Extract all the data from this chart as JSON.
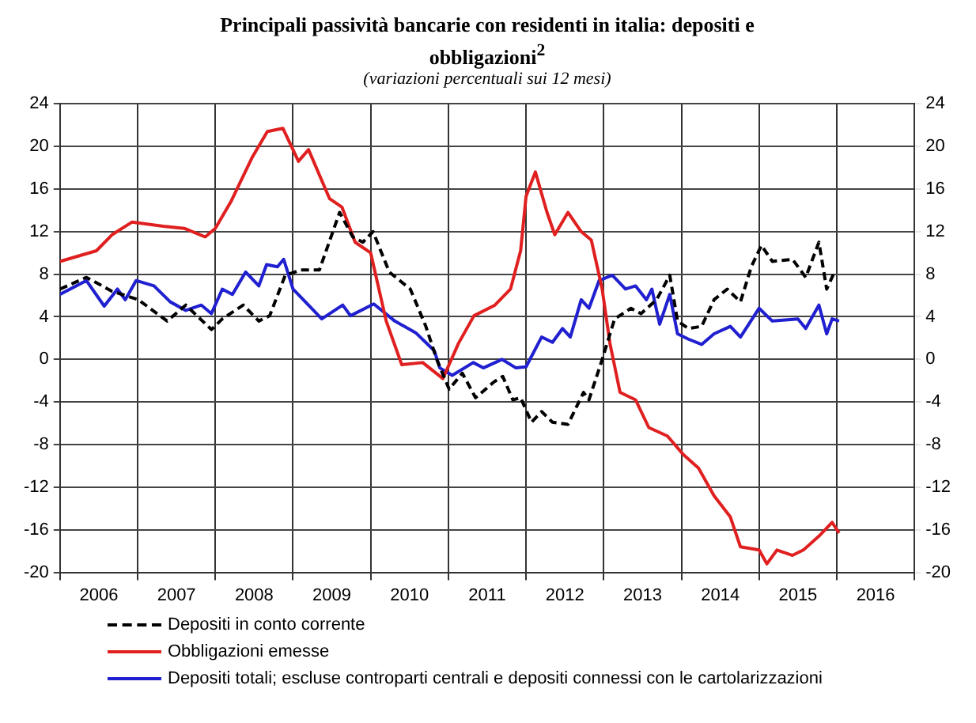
{
  "chart_data": {
    "type": "line",
    "title": "Principali passività bancarie con residenti in italia: depositi e obbligazioni$^{2}$",
    "subtitle": "(variazioni percentuali sui 12 mesi)",
    "xlim": [
      2006,
      2017
    ],
    "xticks": [
      {
        "value": 2006,
        "label": null
      },
      {
        "value": 2006.5,
        "label": "2006"
      },
      {
        "value": 2007,
        "label": null
      },
      {
        "value": 2007.5,
        "label": "2007"
      },
      {
        "value": 2008,
        "label": null
      },
      {
        "value": 2008.5,
        "label": "2008"
      },
      {
        "value": 2009,
        "label": null
      },
      {
        "value": 2009.5,
        "label": "2009"
      },
      {
        "value": 2010,
        "label": null
      },
      {
        "value": 2010.5,
        "label": "2010"
      },
      {
        "value": 2011,
        "label": null
      },
      {
        "value": 2011.5,
        "label": "2011"
      },
      {
        "value": 2012,
        "label": null
      },
      {
        "value": 2012.5,
        "label": "2012"
      },
      {
        "value": 2013,
        "label": null
      },
      {
        "value": 2013.5,
        "label": "2013"
      },
      {
        "value": 2014,
        "label": null
      },
      {
        "value": 2014.5,
        "label": "2014"
      },
      {
        "value": 2015,
        "label": null
      },
      {
        "value": 2015.5,
        "label": "2015"
      },
      {
        "value": 2016,
        "label": null
      },
      {
        "value": 2016.5,
        "label": "2016"
      },
      {
        "value": 2017,
        "label": null
      }
    ],
    "ylim": [
      -20,
      24
    ],
    "yticks": [
      -20,
      -16,
      -12,
      -8,
      -4,
      0,
      4,
      8,
      12,
      16,
      20,
      24
    ],
    "y2lim": [
      -20,
      24
    ],
    "y2ticks": [
      -20,
      -16,
      -12,
      -8,
      -4,
      0,
      4,
      8,
      12,
      16,
      20,
      24
    ],
    "grid": true,
    "legend": "bottom",
    "marker": "none",
    "series": [
      {
        "name": "Depositi in conto corrente",
        "color": "#000000",
        "line_style": "dashed",
        "x": [
          2006,
          2006.34,
          2006.67,
          2007.01,
          2007.38,
          2007.62,
          2007.95,
          2008.09,
          2008.36,
          2008.56,
          2008.7,
          2008.9,
          2009.1,
          2009.34,
          2009.6,
          2009.77,
          2009.9,
          2010.03,
          2010.24,
          2010.51,
          2010.71,
          2010.85,
          2011.01,
          2011.18,
          2011.35,
          2011.59,
          2011.7,
          2011.83,
          2011.93,
          2012.07,
          2012.2,
          2012.34,
          2012.54,
          2012.74,
          2012.81,
          2012.98,
          2013.14,
          2013.35,
          2013.48,
          2013.68,
          2013.85,
          2013.95,
          2014.09,
          2014.26,
          2014.42,
          2014.59,
          2014.76,
          2014.9,
          2015.03,
          2015.17,
          2015.43,
          2015.6,
          2015.77,
          2015.87,
          2015.97
        ],
        "values": [
          6.6,
          7.7,
          6.4,
          5.6,
          3.6,
          5.1,
          2.8,
          3.8,
          5.1,
          3.6,
          4.1,
          7.9,
          8.4,
          8.4,
          13.8,
          11.5,
          11,
          12,
          8.2,
          6.6,
          3.1,
          0,
          -2.8,
          -1.3,
          -3.6,
          -2.1,
          -1.6,
          -3.8,
          -3.6,
          -5.9,
          -4.9,
          -5.9,
          -6.1,
          -3.1,
          -3.8,
          0,
          3.8,
          4.8,
          4.3,
          5.6,
          7.9,
          3.6,
          2.9,
          3.1,
          5.6,
          6.6,
          5.4,
          8.7,
          10.7,
          9.2,
          9.4,
          7.7,
          11,
          6.6,
          8.2
        ]
      },
      {
        "name": "Obbligazioni emesse",
        "color": "#e02020",
        "line_style": "solid",
        "x": [
          2006,
          2006.47,
          2006.67,
          2006.93,
          2007.33,
          2007.6,
          2007.87,
          2008,
          2008.2,
          2008.47,
          2008.67,
          2008.87,
          2009.07,
          2009.2,
          2009.47,
          2009.63,
          2009.8,
          2010,
          2010.2,
          2010.4,
          2010.67,
          2010.93,
          2011.13,
          2011.33,
          2011.6,
          2011.8,
          2011.93,
          2012,
          2012.12,
          2012.27,
          2012.37,
          2012.54,
          2012.71,
          2012.84,
          2012.98,
          2013.08,
          2013.21,
          2013.41,
          2013.58,
          2013.82,
          2014.02,
          2014.22,
          2014.42,
          2014.63,
          2014.76,
          2015,
          2015.1,
          2015.23,
          2015.43,
          2015.57,
          2015.77,
          2015.94,
          2016.03
        ],
        "values": [
          9.2,
          10.2,
          11.7,
          12.9,
          12.5,
          12.3,
          11.5,
          12.3,
          14.8,
          18.9,
          21.4,
          21.7,
          18.6,
          19.7,
          15.1,
          14.3,
          11,
          10,
          3.6,
          -0.5,
          -0.3,
          -1.8,
          1.5,
          4.1,
          5.1,
          6.6,
          10.2,
          15.3,
          17.6,
          13.8,
          11.7,
          13.8,
          12,
          11.2,
          6.6,
          1.5,
          -3.1,
          -3.8,
          -6.4,
          -7.2,
          -8.9,
          -10.2,
          -12.8,
          -14.8,
          -17.6,
          -17.9,
          -19.2,
          -17.9,
          -18.4,
          -17.9,
          -16.6,
          -15.3,
          -16.3
        ]
      },
      {
        "name": "Depositi totali; escluse controparti centrali e depositi connessi con le cartolarizzazioni",
        "color": "#2020d0",
        "line_style": "solid",
        "x": [
          2006,
          2006.34,
          2006.57,
          2006.74,
          2006.84,
          2006.98,
          2007.21,
          2007.42,
          2007.62,
          2007.82,
          2007.95,
          2008.09,
          2008.22,
          2008.39,
          2008.56,
          2008.66,
          2008.8,
          2008.88,
          2009,
          2009.37,
          2009.64,
          2009.74,
          2010.04,
          2010.31,
          2010.58,
          2010.82,
          2010.89,
          2011.05,
          2011.32,
          2011.45,
          2011.69,
          2011.87,
          2012,
          2012.2,
          2012.34,
          2012.47,
          2012.57,
          2012.71,
          2012.81,
          2012.94,
          2013.11,
          2013.28,
          2013.41,
          2013.55,
          2013.62,
          2013.72,
          2013.85,
          2013.95,
          2014.09,
          2014.26,
          2014.42,
          2014.63,
          2014.76,
          2015,
          2015.17,
          2015.5,
          2015.6,
          2015.77,
          2015.87,
          2015.94,
          2016.03
        ],
        "values": [
          6.1,
          7.4,
          5,
          6.6,
          5.6,
          7.4,
          6.9,
          5.4,
          4.6,
          5.1,
          4.3,
          6.6,
          6.1,
          8.2,
          6.9,
          8.9,
          8.7,
          9.4,
          6.6,
          3.8,
          5.1,
          4.1,
          5.2,
          3.6,
          2.5,
          0.8,
          -0.8,
          -1.5,
          -0.3,
          -0.8,
          0,
          -0.8,
          -0.7,
          2.1,
          1.6,
          2.9,
          2.1,
          5.6,
          4.8,
          7.4,
          7.9,
          6.6,
          6.9,
          5.6,
          6.6,
          3.3,
          6.1,
          2.4,
          1.9,
          1.4,
          2.4,
          3.1,
          2.1,
          4.8,
          3.6,
          3.8,
          2.9,
          5.1,
          2.4,
          3.8,
          3.6
        ]
      }
    ]
  }
}
